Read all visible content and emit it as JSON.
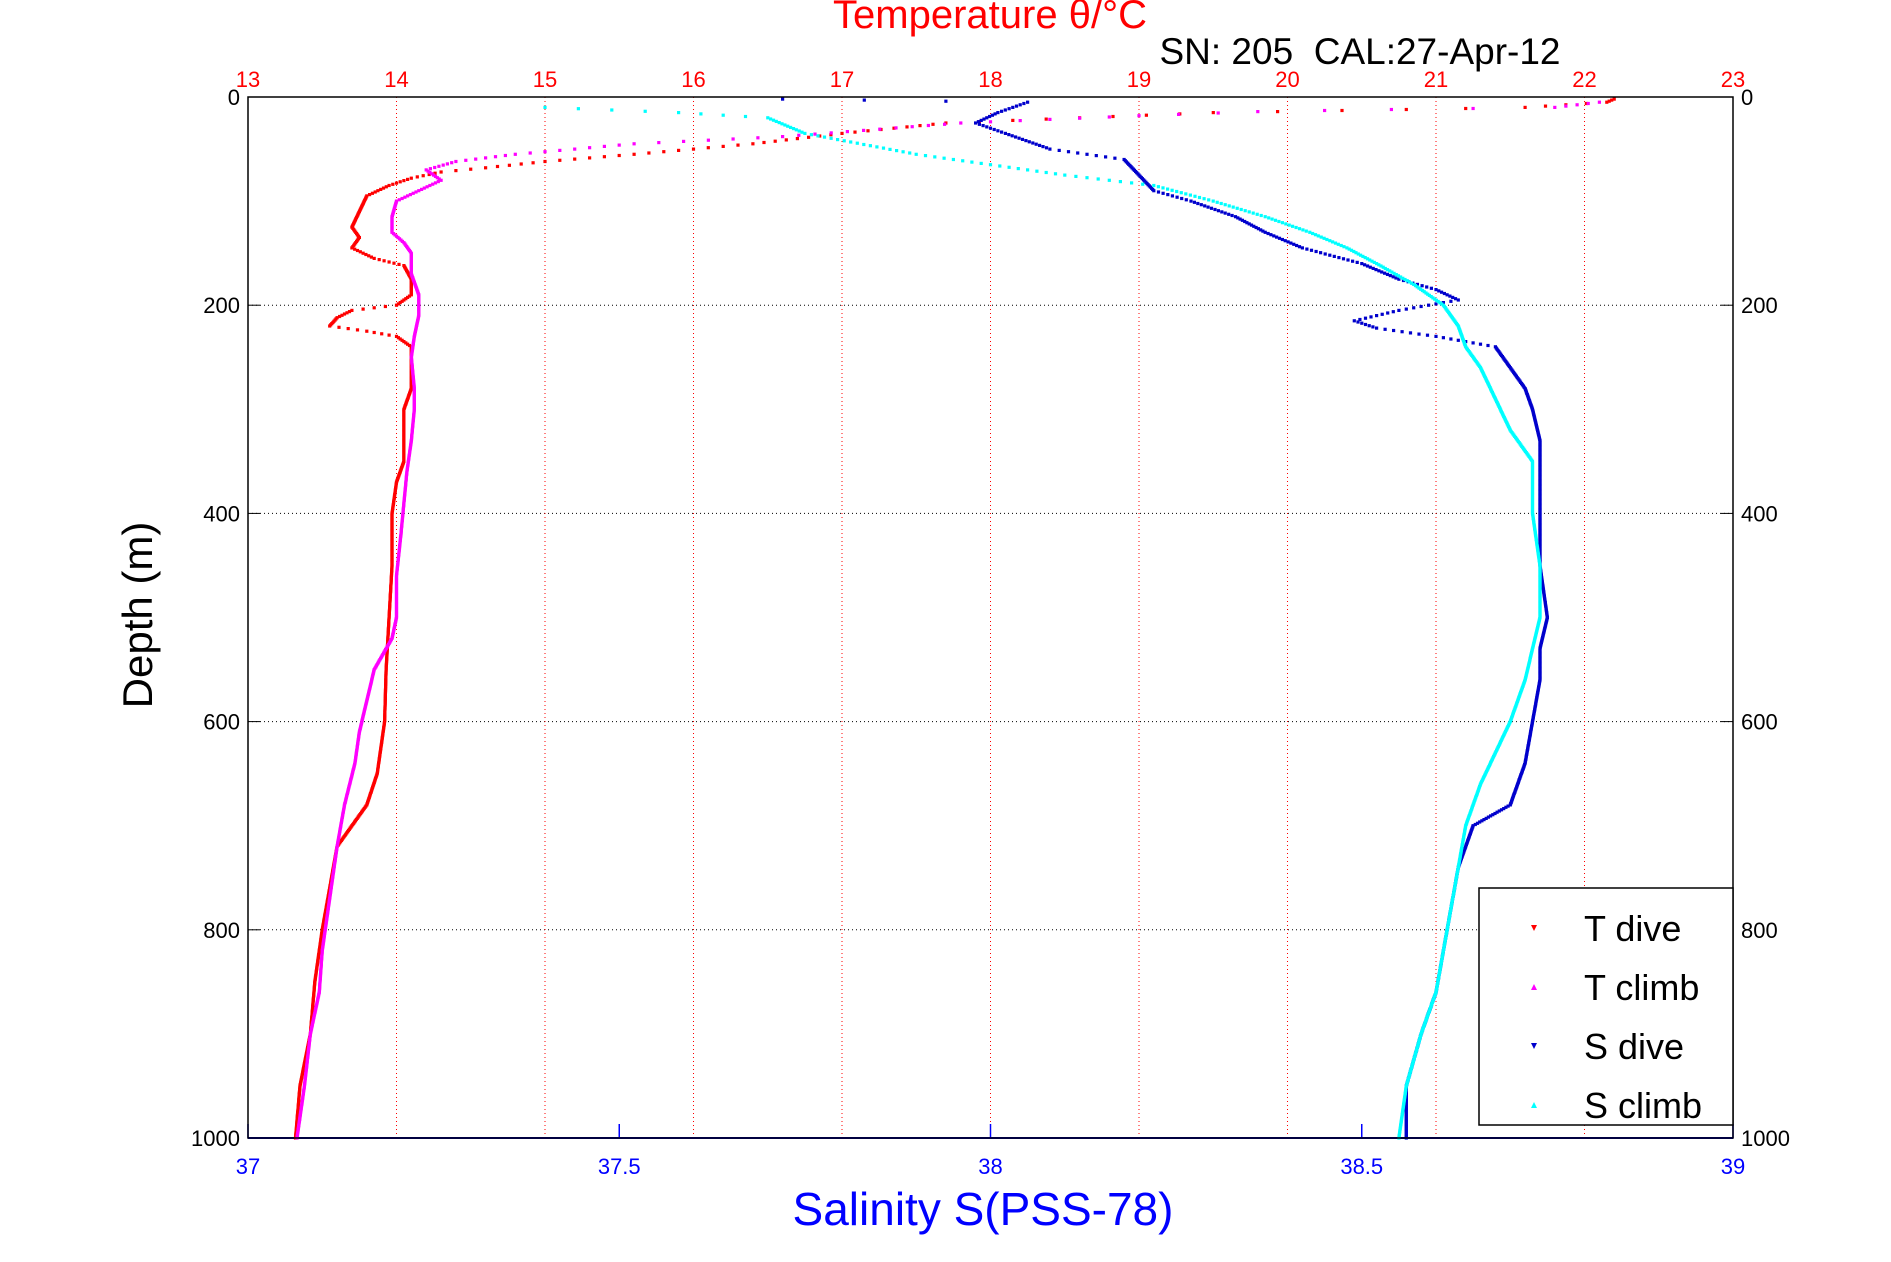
{
  "chart_data": {
    "type": "scatter",
    "title": "Temperature θ/°C",
    "subtitle": "SN: 205  CAL:27-Apr-12",
    "ylabel": "Depth (m)",
    "xlabel": "Salinity S(PSS-78)",
    "y_axis": {
      "range": [
        0,
        1000
      ],
      "reversed": true,
      "ticks": [
        0,
        200,
        400,
        600,
        800,
        1000
      ],
      "tick_labels": [
        "0",
        "200",
        "400",
        "600",
        "800",
        "1000"
      ]
    },
    "temperature_axis": {
      "position": "top",
      "range": [
        13,
        23
      ],
      "ticks": [
        13,
        14,
        15,
        16,
        17,
        18,
        19,
        20,
        21,
        22,
        23
      ],
      "tick_labels": [
        "13",
        "14",
        "15",
        "16",
        "17",
        "18",
        "19",
        "20",
        "21",
        "22",
        "23"
      ]
    },
    "salinity_axis": {
      "position": "bottom",
      "range": [
        37,
        39
      ],
      "ticks": [
        37,
        37.5,
        38,
        38.5,
        39
      ],
      "tick_labels": [
        "37",
        "37.5",
        "38",
        "38.5",
        "39"
      ]
    },
    "grid": true,
    "legend": {
      "placement": "bottom-right"
    },
    "colors": {
      "temp_axis": "#ff0000",
      "sal_axis": "#0000ff",
      "T dive": "#ff0000",
      "T climb": "#ff00ff",
      "S dive": "#0000cc",
      "S climb": "#00ffff"
    },
    "series": [
      {
        "name": "T dive",
        "axis": "temperature",
        "marker": "triangle-down",
        "points": [
          [
            22.2,
            2
          ],
          [
            22.15,
            5
          ],
          [
            21.6,
            10
          ],
          [
            20.8,
            12
          ],
          [
            19.5,
            15
          ],
          [
            18.6,
            20
          ],
          [
            17.7,
            25
          ],
          [
            17.0,
            35
          ],
          [
            16.4,
            45
          ],
          [
            15.6,
            55
          ],
          [
            15.0,
            62
          ],
          [
            14.6,
            68
          ],
          [
            14.3,
            72
          ],
          [
            14.1,
            78
          ],
          [
            13.95,
            85
          ],
          [
            13.8,
            95
          ],
          [
            13.75,
            110
          ],
          [
            13.7,
            125
          ],
          [
            13.75,
            135
          ],
          [
            13.7,
            145
          ],
          [
            13.85,
            155
          ],
          [
            14.05,
            162
          ],
          [
            14.1,
            175
          ],
          [
            14.1,
            190
          ],
          [
            14.0,
            200
          ],
          [
            13.7,
            205
          ],
          [
            13.6,
            212
          ],
          [
            13.55,
            220
          ],
          [
            13.8,
            225
          ],
          [
            14.0,
            230
          ],
          [
            14.1,
            240
          ],
          [
            14.1,
            260
          ],
          [
            14.1,
            280
          ],
          [
            14.05,
            300
          ],
          [
            14.05,
            330
          ],
          [
            14.05,
            350
          ],
          [
            14.0,
            370
          ],
          [
            13.97,
            400
          ],
          [
            13.97,
            450
          ],
          [
            13.95,
            500
          ],
          [
            13.93,
            550
          ],
          [
            13.92,
            600
          ],
          [
            13.9,
            620
          ],
          [
            13.87,
            650
          ],
          [
            13.8,
            680
          ],
          [
            13.7,
            700
          ],
          [
            13.6,
            720
          ],
          [
            13.55,
            760
          ],
          [
            13.5,
            800
          ],
          [
            13.45,
            850
          ],
          [
            13.42,
            900
          ],
          [
            13.35,
            950
          ],
          [
            13.32,
            1000
          ]
        ]
      },
      {
        "name": "T climb",
        "axis": "temperature",
        "marker": "triangle-up",
        "points": [
          [
            22.1,
            5
          ],
          [
            21.8,
            10
          ],
          [
            20.7,
            12
          ],
          [
            19.8,
            14
          ],
          [
            19.0,
            18
          ],
          [
            17.8,
            25
          ],
          [
            16.6,
            38
          ],
          [
            15.6,
            45
          ],
          [
            14.8,
            55
          ],
          [
            14.4,
            62
          ],
          [
            14.2,
            70
          ],
          [
            14.3,
            80
          ],
          [
            14.15,
            90
          ],
          [
            14.0,
            100
          ],
          [
            13.97,
            115
          ],
          [
            13.97,
            130
          ],
          [
            14.05,
            140
          ],
          [
            14.1,
            150
          ],
          [
            14.1,
            170
          ],
          [
            14.15,
            190
          ],
          [
            14.15,
            210
          ],
          [
            14.12,
            230
          ],
          [
            14.1,
            250
          ],
          [
            14.12,
            280
          ],
          [
            14.12,
            300
          ],
          [
            14.1,
            330
          ],
          [
            14.07,
            360
          ],
          [
            14.05,
            390
          ],
          [
            14.03,
            420
          ],
          [
            14.0,
            460
          ],
          [
            14.0,
            500
          ],
          [
            13.97,
            520
          ],
          [
            13.85,
            550
          ],
          [
            13.8,
            580
          ],
          [
            13.75,
            610
          ],
          [
            13.72,
            640
          ],
          [
            13.65,
            680
          ],
          [
            13.6,
            720
          ],
          [
            13.55,
            770
          ],
          [
            13.5,
            820
          ],
          [
            13.48,
            860
          ],
          [
            13.42,
            900
          ],
          [
            13.38,
            950
          ],
          [
            13.33,
            1000
          ]
        ]
      },
      {
        "name": "S dive",
        "axis": "salinity",
        "marker": "triangle-down",
        "points": [
          [
            37.72,
            2
          ],
          [
            38.05,
            5
          ],
          [
            38.01,
            15
          ],
          [
            37.98,
            25
          ],
          [
            38.02,
            35
          ],
          [
            38.08,
            50
          ],
          [
            38.18,
            60
          ],
          [
            38.2,
            75
          ],
          [
            38.22,
            90
          ],
          [
            38.27,
            100
          ],
          [
            38.33,
            115
          ],
          [
            38.37,
            130
          ],
          [
            38.42,
            145
          ],
          [
            38.5,
            160
          ],
          [
            38.55,
            175
          ],
          [
            38.6,
            185
          ],
          [
            38.63,
            195
          ],
          [
            38.55,
            205
          ],
          [
            38.49,
            215
          ],
          [
            38.52,
            222
          ],
          [
            38.6,
            230
          ],
          [
            38.68,
            240
          ],
          [
            38.7,
            260
          ],
          [
            38.72,
            280
          ],
          [
            38.73,
            300
          ],
          [
            38.74,
            330
          ],
          [
            38.74,
            360
          ],
          [
            38.74,
            400
          ],
          [
            38.74,
            450
          ],
          [
            38.75,
            500
          ],
          [
            38.74,
            530
          ],
          [
            38.74,
            560
          ],
          [
            38.73,
            600
          ],
          [
            38.72,
            640
          ],
          [
            38.7,
            680
          ],
          [
            38.65,
            700
          ],
          [
            38.63,
            740
          ],
          [
            38.62,
            780
          ],
          [
            38.61,
            820
          ],
          [
            38.6,
            860
          ],
          [
            38.58,
            900
          ],
          [
            38.56,
            950
          ],
          [
            38.56,
            1000
          ]
        ]
      },
      {
        "name": "S climb",
        "axis": "salinity",
        "marker": "triangle-up",
        "points": [
          [
            37.4,
            10
          ],
          [
            37.58,
            15
          ],
          [
            37.7,
            20
          ],
          [
            37.75,
            35
          ],
          [
            37.9,
            55
          ],
          [
            38.0,
            65
          ],
          [
            38.1,
            75
          ],
          [
            38.22,
            85
          ],
          [
            38.3,
            100
          ],
          [
            38.37,
            115
          ],
          [
            38.43,
            130
          ],
          [
            38.48,
            145
          ],
          [
            38.52,
            160
          ],
          [
            38.57,
            180
          ],
          [
            38.61,
            200
          ],
          [
            38.63,
            220
          ],
          [
            38.64,
            240
          ],
          [
            38.66,
            260
          ],
          [
            38.68,
            290
          ],
          [
            38.7,
            320
          ],
          [
            38.73,
            350
          ],
          [
            38.73,
            400
          ],
          [
            38.74,
            450
          ],
          [
            38.74,
            500
          ],
          [
            38.73,
            530
          ],
          [
            38.72,
            560
          ],
          [
            38.7,
            600
          ],
          [
            38.68,
            630
          ],
          [
            38.66,
            660
          ],
          [
            38.64,
            700
          ],
          [
            38.63,
            740
          ],
          [
            38.62,
            780
          ],
          [
            38.61,
            820
          ],
          [
            38.6,
            860
          ],
          [
            38.58,
            900
          ],
          [
            38.56,
            950
          ],
          [
            38.55,
            1000
          ]
        ]
      }
    ]
  }
}
